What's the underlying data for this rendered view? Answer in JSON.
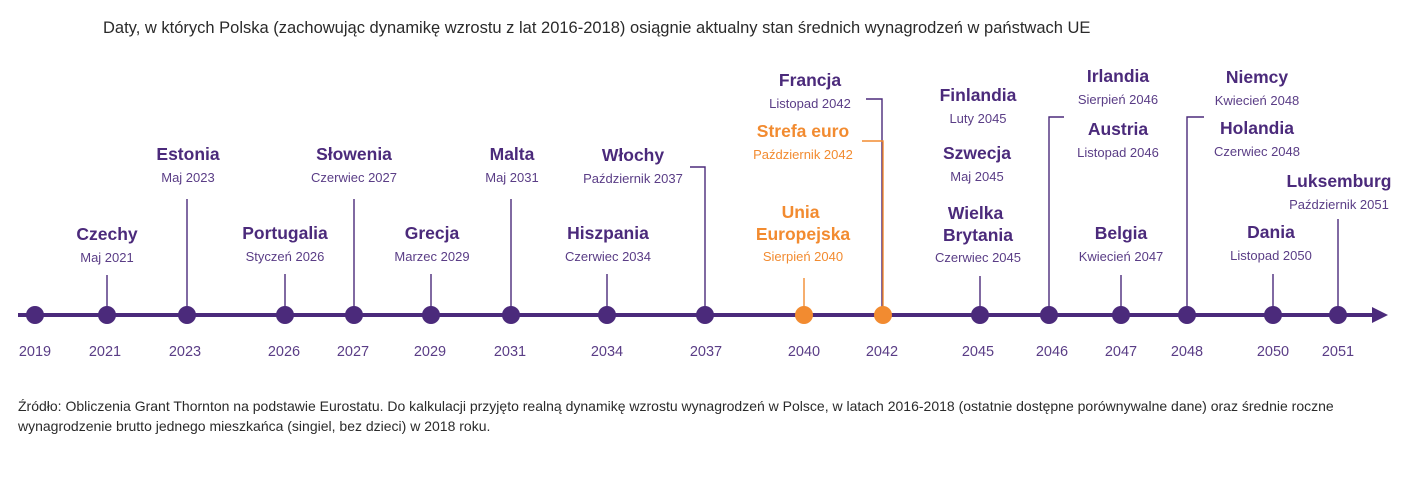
{
  "title": "Daty, w których Polska (zachowując dynamikę wzrostu z lat 2016-2018) osiągnie aktualny stan średnich wynagrodzeń w państwach UE",
  "source": "Źródło: Obliczenia Grant Thornton na podstawie Eurostatu. Do kalkulacji przyjęto realną dynamikę wzrostu wynagrodzeń w Polsce, w latach 2016-2018 (ostatnie dostępne porównywalne dane) oraz średnie roczne wynagrodzenie brutto jednego mieszkańca (singiel, bez dzieci) w 2018 roku.",
  "colors": {
    "purple": "#4b2a7b",
    "orange": "#f28b30"
  },
  "timeline": {
    "points": [
      {
        "year": "2019",
        "color": "purple",
        "labels": []
      },
      {
        "year": "2021",
        "color": "purple",
        "labels": [
          {
            "country": "Czechy",
            "date": "Maj 2021"
          }
        ]
      },
      {
        "year": "2023",
        "color": "purple",
        "labels": [
          {
            "country": "Estonia",
            "date": "Maj 2023"
          }
        ]
      },
      {
        "year": "2026",
        "color": "purple",
        "labels": [
          {
            "country": "Portugalia",
            "date": "Styczeń 2026"
          }
        ]
      },
      {
        "year": "2027",
        "color": "purple",
        "labels": [
          {
            "country": "Słowenia",
            "date": "Czerwiec 2027"
          }
        ]
      },
      {
        "year": "2029",
        "color": "purple",
        "labels": [
          {
            "country": "Grecja",
            "date": "Marzec 2029"
          }
        ]
      },
      {
        "year": "2031",
        "color": "purple",
        "labels": [
          {
            "country": "Malta",
            "date": "Maj 2031"
          }
        ]
      },
      {
        "year": "2034",
        "color": "purple",
        "labels": [
          {
            "country": "Hiszpania",
            "date": "Czerwiec 2034"
          }
        ]
      },
      {
        "year": "2037",
        "color": "purple",
        "labels": [
          {
            "country": "Włochy",
            "date": "Październik 2037"
          }
        ]
      },
      {
        "year": "2040",
        "color": "orange",
        "labels": [
          {
            "country": "Unia Europejska",
            "date": "Sierpień 2040"
          }
        ]
      },
      {
        "year": "2042",
        "color": "orange",
        "labels": [
          {
            "country": "Francja",
            "date": "Listopad 2042"
          },
          {
            "country": "Strefa euro",
            "date": "Październik 2042"
          }
        ]
      },
      {
        "year": "2045",
        "color": "purple",
        "labels": [
          {
            "country": "Finlandia",
            "date": "Luty 2045"
          },
          {
            "country": "Szwecja",
            "date": "Maj 2045"
          },
          {
            "country": "Wielka Brytania",
            "date": "Czerwiec 2045"
          }
        ]
      },
      {
        "year": "2046",
        "color": "purple",
        "labels": [
          {
            "country": "Irlandia",
            "date": "Sierpień 2046"
          },
          {
            "country": "Austria",
            "date": "Listopad 2046"
          }
        ]
      },
      {
        "year": "2047",
        "color": "purple",
        "labels": [
          {
            "country": "Belgia",
            "date": "Kwiecień 2047"
          }
        ]
      },
      {
        "year": "2048",
        "color": "purple",
        "labels": [
          {
            "country": "Niemcy",
            "date": "Kwiecień 2048"
          },
          {
            "country": "Holandia",
            "date": "Czerwiec 2048"
          }
        ]
      },
      {
        "year": "2050",
        "color": "purple",
        "labels": [
          {
            "country": "Dania",
            "date": "Listopad 2050"
          }
        ]
      },
      {
        "year": "2051",
        "color": "purple",
        "labels": [
          {
            "country": "Luksemburg",
            "date": "Październik 2051"
          }
        ]
      }
    ]
  }
}
